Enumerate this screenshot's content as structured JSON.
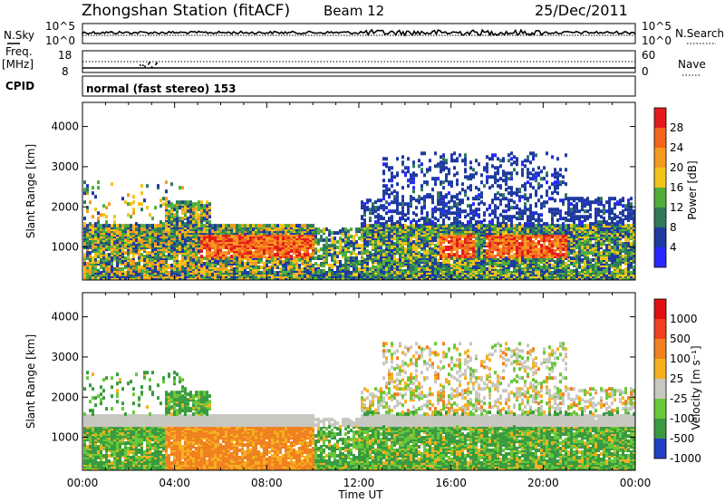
{
  "header": {
    "station": "Zhongshan Station (fitACF)",
    "beam": "Beam 12",
    "date": "25/Dec/2011"
  },
  "summary_panels": {
    "nsky_label": "N.Sky",
    "nsky_ticks": [
      "10^5",
      "10^0"
    ],
    "nsearch_label": "N.Search",
    "nsearch_ticks": [
      "10^5",
      "10^0"
    ],
    "freq_label": "Freq.",
    "freq_unit": "[MHz]",
    "freq_ticks": [
      "18",
      "8"
    ],
    "nave_label": "Nave",
    "nave_ticks": [
      "60",
      "0"
    ],
    "cpid_label": "CPID",
    "cpid_text": "normal (fast stereo) 153"
  },
  "chart_data": [
    {
      "type": "heatmap",
      "name": "power",
      "ylabel": "Slant Range [km]",
      "xlabel": "",
      "ylim": [
        180,
        4600
      ],
      "yticks": [
        "1000",
        "2000",
        "3000",
        "4000"
      ],
      "colorbar_label": "Power [dB]",
      "colorbar_ticks": [
        "28",
        "24",
        "20",
        "16",
        "12",
        "8",
        "4"
      ],
      "colors": [
        "#2828ff",
        "#1e3aa0",
        "#2f7a5a",
        "#4fae3a",
        "#f2c31a",
        "#f59a1e",
        "#f4641e",
        "#e21a1a"
      ]
    },
    {
      "type": "heatmap",
      "name": "velocity",
      "ylabel": "Slant Range [km]",
      "xlabel": "Time UT",
      "ylim": [
        180,
        4600
      ],
      "yticks": [
        "1000",
        "2000",
        "3000",
        "4000"
      ],
      "xticks": [
        "00:00",
        "04:00",
        "08:00",
        "12:00",
        "16:00",
        "20:00",
        "00:00"
      ],
      "colorbar_label": "Velocity [m s⁻¹]",
      "colorbar_ticks": [
        "1000",
        "500",
        "100",
        "25",
        "-25",
        "-100",
        "-500",
        "-1000"
      ],
      "colors": [
        "#2040c0",
        "#3a9a40",
        "#68c838",
        "#c8c8c0",
        "#f5b020",
        "#f08020",
        "#f04020",
        "#e01010"
      ]
    }
  ]
}
